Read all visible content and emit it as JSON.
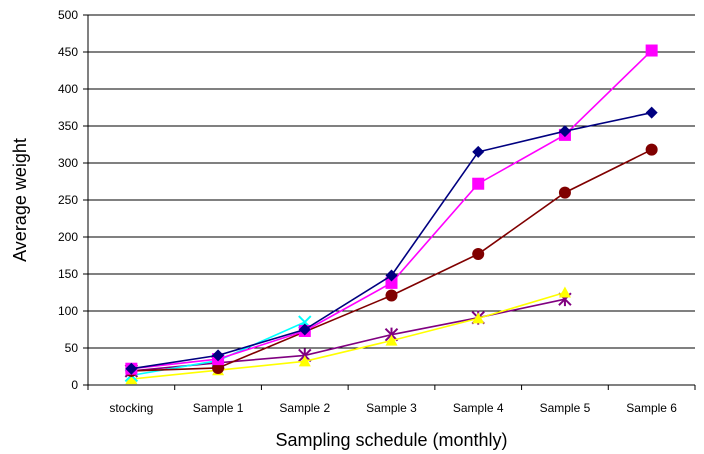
{
  "chart_data": {
    "type": "line",
    "title": "",
    "xlabel": "Sampling schedule (monthly)",
    "ylabel": "Average weight",
    "ylim": [
      0,
      500
    ],
    "yticks": [
      0,
      50,
      100,
      150,
      200,
      250,
      300,
      350,
      400,
      450,
      500
    ],
    "grid": "horizontal",
    "legend": "none",
    "categories": [
      "stocking",
      "Sample 1",
      "Sample 2",
      "Sample 3",
      "Sample 4",
      "Sample 5",
      "Sample 6"
    ],
    "series": [
      {
        "color": "#000080",
        "marker": "diamond",
        "values": [
          22,
          40,
          75,
          148,
          315,
          343,
          368
        ]
      },
      {
        "color": "#ff00ff",
        "marker": "square",
        "values": [
          22,
          35,
          73,
          138,
          272,
          338,
          452
        ]
      },
      {
        "color": "#800000",
        "marker": "circle",
        "values": [
          19,
          23,
          null,
          121,
          177,
          260,
          318
        ]
      },
      {
        "color": "#00ffff",
        "marker": "x",
        "values": [
          13,
          33,
          85,
          null,
          null,
          null,
          null
        ]
      },
      {
        "color": "#ffff00",
        "marker": "triangle",
        "values": [
          8,
          20,
          32,
          60,
          90,
          125,
          null
        ]
      },
      {
        "color": "#800080",
        "marker": "asterisk",
        "values": [
          19,
          30,
          40,
          68,
          91,
          116,
          null
        ]
      }
    ]
  }
}
